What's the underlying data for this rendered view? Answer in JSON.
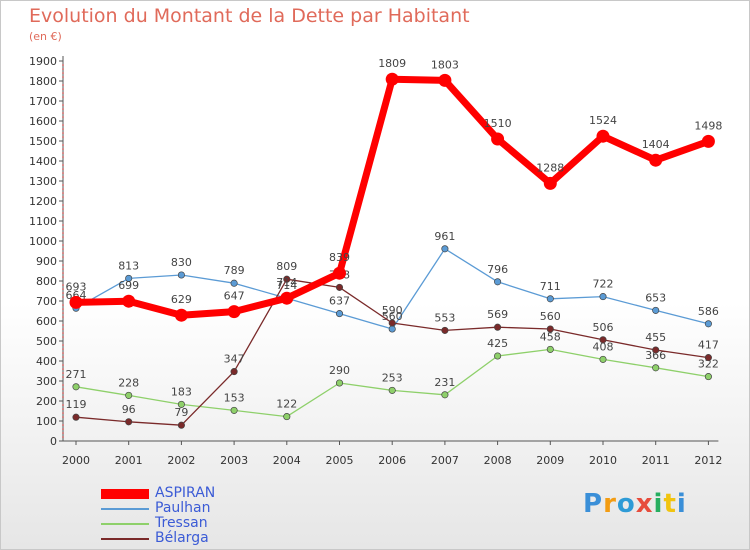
{
  "chart_data": {
    "type": "line",
    "title": "Evolution du Montant de la Dette par Habitant",
    "subtitle": "(en €)",
    "x": [
      "2000",
      "2001",
      "2002",
      "2003",
      "2004",
      "2005",
      "2006",
      "2007",
      "2008",
      "2009",
      "2010",
      "2011",
      "2012"
    ],
    "yticks": [
      0,
      100,
      200,
      300,
      400,
      500,
      600,
      700,
      800,
      900,
      1000,
      1100,
      1200,
      1300,
      1400,
      1500,
      1600,
      1700,
      1800,
      1900
    ],
    "ylim": [
      0,
      1900
    ],
    "grid": false,
    "legend_position": "bottom-left",
    "series": [
      {
        "name": "Paulhan",
        "color": "#5b9bd5",
        "values": [
          664,
          813,
          830,
          789,
          714,
          637,
          560,
          961,
          796,
          711,
          722,
          653,
          586
        ]
      },
      {
        "name": "Tressan",
        "color": "#8ed06a",
        "values": [
          271,
          228,
          183,
          153,
          122,
          290,
          253,
          231,
          425,
          458,
          408,
          366,
          322
        ]
      },
      {
        "name": "Bélarga",
        "color": "#7a2a2a",
        "values": [
          119,
          96,
          79,
          347,
          809,
          768,
          590,
          553,
          569,
          560,
          506,
          455,
          417
        ]
      },
      {
        "name": "ASPIRAN",
        "color": "#ff0000",
        "values": [
          693,
          699,
          629,
          647,
          714,
          839,
          1809,
          1803,
          1510,
          1288,
          1524,
          1404,
          1498
        ]
      }
    ],
    "legend": [
      {
        "name": "ASPIRAN",
        "color": "#ff0000",
        "thickness": 10
      },
      {
        "name": "Paulhan",
        "color": "#5b9bd5",
        "thickness": 2
      },
      {
        "name": "Tressan",
        "color": "#8ed06a",
        "thickness": 2
      },
      {
        "name": "Bélarga",
        "color": "#7a2a2a",
        "thickness": 2
      }
    ]
  },
  "logo": {
    "text": "Proxiti"
  }
}
